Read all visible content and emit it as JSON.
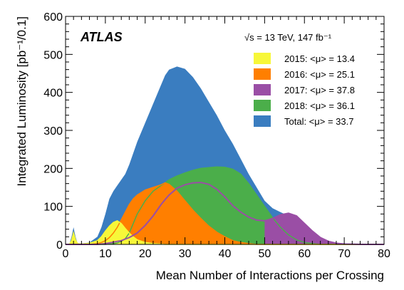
{
  "chart_data": {
    "type": "area",
    "experiment_label": "ATLAS",
    "energy_label": "√s = 13 TeV, 147 fb⁻¹",
    "xlabel": "Mean Number of Interactions per Crossing",
    "ylabel": "Integrated Luminosity [pb⁻¹/0.1]",
    "xlim": [
      0,
      80
    ],
    "ylim": [
      0,
      600
    ],
    "x_ticks": [
      0,
      10,
      20,
      30,
      40,
      50,
      60,
      70,
      80
    ],
    "y_ticks": [
      0,
      100,
      200,
      300,
      400,
      500,
      600
    ],
    "legend_position": "top-right",
    "x": [
      0,
      1,
      1.5,
      2,
      2.5,
      3,
      4,
      6,
      8,
      9,
      10,
      11,
      12,
      13,
      14,
      15,
      16,
      17,
      18,
      20,
      22,
      24,
      25,
      26,
      28,
      30,
      32,
      34,
      36,
      38,
      40,
      42,
      44,
      46,
      48,
      50,
      52,
      54,
      56,
      58,
      60,
      62,
      64,
      66,
      68,
      70,
      75,
      80
    ],
    "series": [
      {
        "name": "Total: <μ> = 33.7",
        "color": "#3a7dc0",
        "style": "filled",
        "values": [
          0,
          2,
          20,
          45,
          20,
          3,
          2,
          5,
          20,
          45,
          80,
          120,
          140,
          155,
          170,
          185,
          210,
          240,
          270,
          320,
          370,
          420,
          445,
          460,
          468,
          462,
          440,
          410,
          375,
          340,
          300,
          265,
          225,
          185,
          150,
          115,
          95,
          85,
          75,
          58,
          40,
          25,
          14,
          7,
          3,
          2,
          1,
          0
        ]
      },
      {
        "name": "2018: <μ> = 36.1",
        "color": "#4bae4a",
        "style": "filled",
        "values": [
          0,
          0,
          0,
          0,
          0,
          0,
          0,
          0,
          0,
          0,
          0,
          1,
          2,
          4,
          8,
          15,
          30,
          55,
          80,
          115,
          140,
          155,
          162,
          170,
          180,
          188,
          195,
          200,
          202,
          204,
          203,
          198,
          185,
          160,
          130,
          100,
          70,
          45,
          25,
          12,
          5,
          2,
          0,
          0,
          0,
          0,
          0,
          0
        ]
      },
      {
        "name": "2016: <μ> = 25.1",
        "color": "#ff7f00",
        "style": "filled",
        "values": [
          0,
          0,
          0,
          0,
          0,
          0,
          0,
          0,
          2,
          5,
          10,
          18,
          30,
          45,
          65,
          85,
          105,
          120,
          130,
          143,
          150,
          157,
          162,
          158,
          140,
          115,
          90,
          68,
          48,
          32,
          20,
          10,
          5,
          2,
          0,
          0,
          0,
          0,
          0,
          0,
          0,
          0,
          0,
          0,
          0,
          0,
          0,
          0
        ]
      },
      {
        "name": "2015: <μ> = 13.4",
        "color": "#f7f739",
        "style": "filled",
        "values": [
          0,
          1,
          10,
          30,
          12,
          2,
          1,
          3,
          10,
          20,
          35,
          48,
          58,
          62,
          55,
          42,
          30,
          20,
          12,
          5,
          2,
          1,
          0,
          0,
          0,
          0,
          0,
          0,
          0,
          0,
          0,
          0,
          0,
          0,
          0,
          0,
          0,
          0,
          0,
          0,
          0,
          0,
          0,
          0,
          0,
          0,
          0,
          0
        ]
      },
      {
        "name": "2017: <μ> = 37.8",
        "color": "#9a4ea5",
        "style": "line",
        "tail_fill_from_x": 49,
        "values": [
          0,
          0,
          0,
          0,
          0,
          0,
          0,
          0,
          0,
          1,
          2,
          4,
          6,
          8,
          10,
          14,
          18,
          24,
          30,
          50,
          75,
          105,
          118,
          130,
          148,
          157,
          162,
          163,
          158,
          145,
          125,
          102,
          85,
          72,
          64,
          62,
          68,
          78,
          82,
          75,
          55,
          35,
          18,
          8,
          3,
          1,
          0,
          0
        ]
      }
    ]
  }
}
